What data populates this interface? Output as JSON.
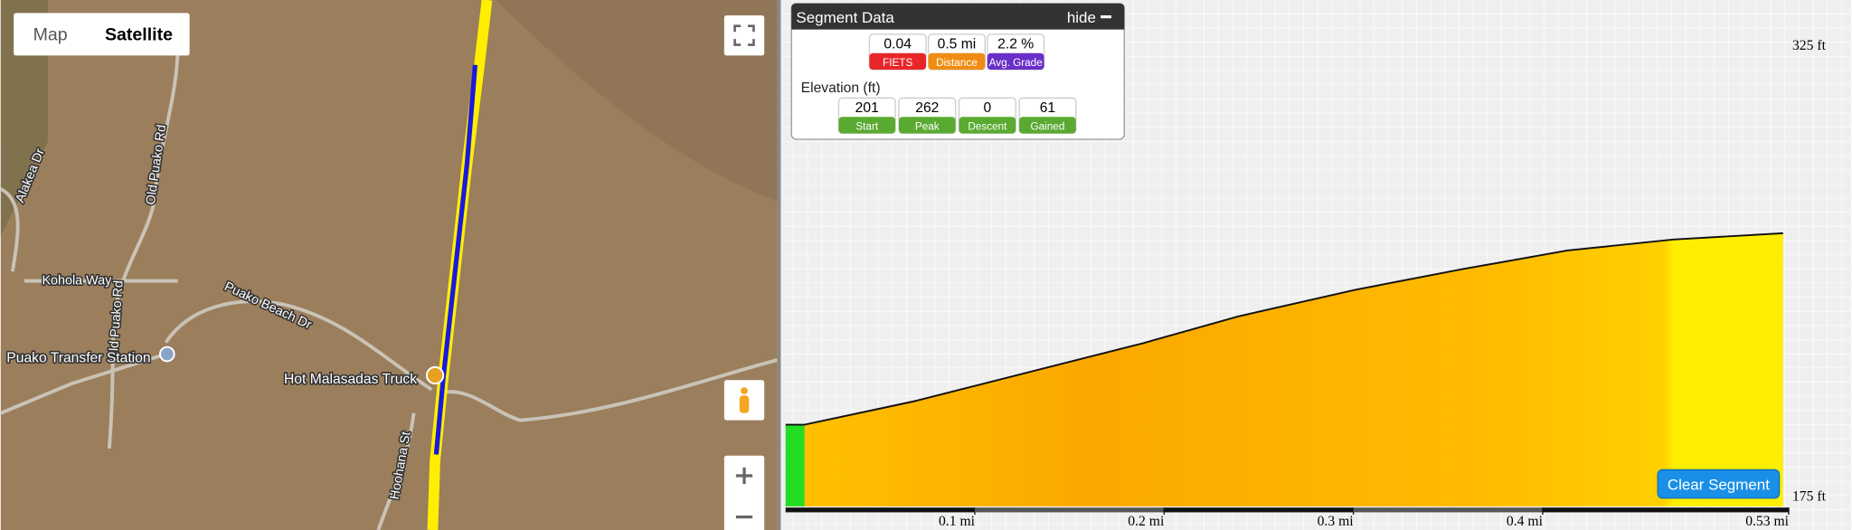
{
  "map": {
    "type_controls": [
      "Map",
      "Satellite"
    ],
    "labels": [
      "Alakea Dr",
      "Old Puako Rd",
      "Kohola Way",
      "Old Puako Rd",
      "Puako Beach Dr",
      "Puako Transfer Station",
      "Hot Malasadas Truck",
      "Hoohana St"
    ]
  },
  "segment_panel": {
    "title": "Segment Data",
    "hide": "hide",
    "stats": [
      {
        "value": "0.04",
        "label": "FIETS"
      },
      {
        "value": "0.5 mi",
        "label": "Distance"
      },
      {
        "value": "2.2 %",
        "label": "Avg. Grade"
      }
    ],
    "elevation_title": "Elevation (ft)",
    "elevation": [
      {
        "value": "201",
        "label": "Start"
      },
      {
        "value": "262",
        "label": "Peak"
      },
      {
        "value": "0",
        "label": "Descent"
      },
      {
        "value": "61",
        "label": "Gained"
      }
    ]
  },
  "elevation_chart": {
    "type": "area",
    "x": [
      0,
      0.01,
      0.068,
      0.127,
      0.189,
      0.239,
      0.301,
      0.357,
      0.413,
      0.469,
      0.527
    ],
    "values": [
      201,
      201,
      208.5,
      217.5,
      227,
      235.5,
      244,
      250.5,
      256.5,
      260,
      262
    ],
    "xlim": [
      0,
      0.53
    ],
    "xticks": [
      {
        "value": 0.1,
        "label": "0.1 mi"
      },
      {
        "value": 0.2,
        "label": "0.2 mi"
      },
      {
        "value": 0.3,
        "label": "0.3 mi"
      },
      {
        "value": 0.4,
        "label": "0.4 mi"
      },
      {
        "value": 0.53,
        "label": "0.53 mi"
      }
    ],
    "ylim": [
      175,
      325
    ],
    "yticks": [
      {
        "value": 175,
        "label": "175 ft"
      },
      {
        "value": 325,
        "label": "325 ft"
      }
    ]
  },
  "clear_button": "Clear Segment"
}
